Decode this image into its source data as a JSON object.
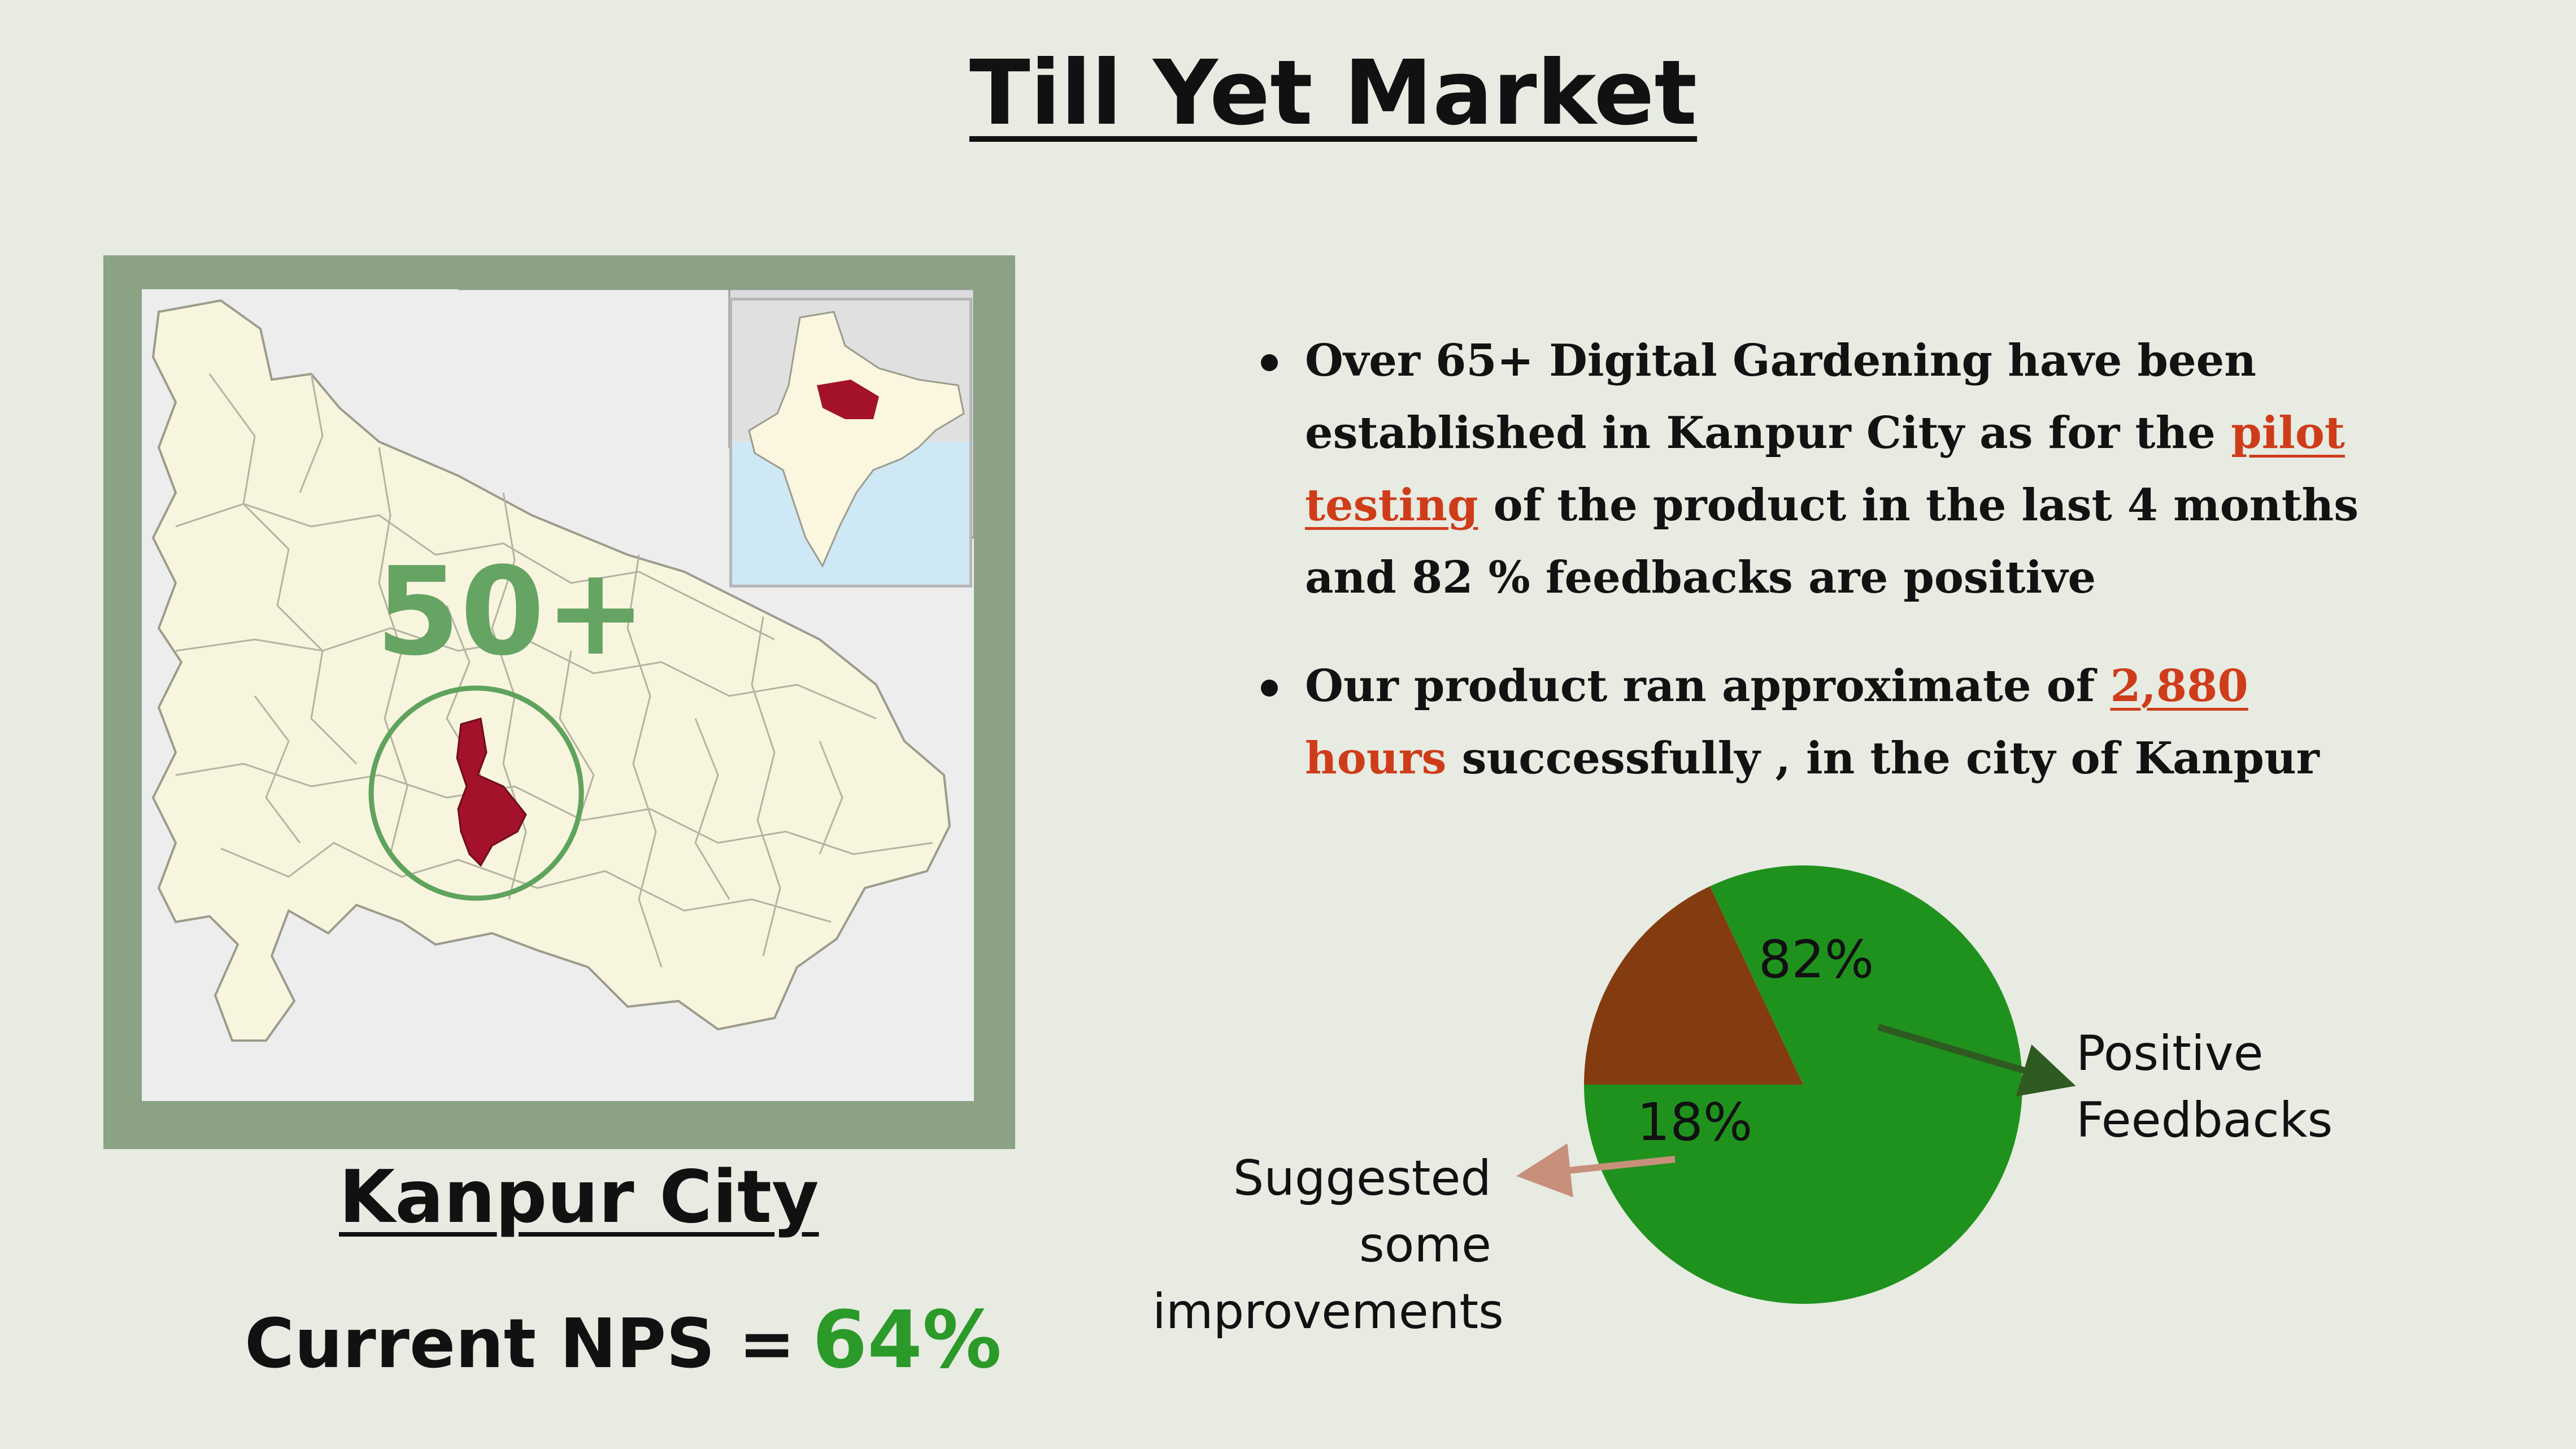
{
  "title": "Till Yet Market",
  "map": {
    "count_label": "50+",
    "city_label": "Kanpur City",
    "colors": {
      "frame": "#8ba285",
      "highlight": "#a3122a",
      "circle": "#5fa35d"
    }
  },
  "nps": {
    "label": "Current NPS =",
    "value": "64%"
  },
  "bullets": [
    {
      "before": "Over 65+ Digital Gardening have been established in Kanpur City as for the",
      "highlight": "pilot testing",
      "after": "of the product in the last 4 months and 82 %  feedbacks are positive"
    },
    {
      "before": "Our product ran approximate of",
      "highlight_underlined": "2,880",
      "highlight_plain": "hours",
      "after": "successfully , in the city of Kanpur"
    }
  ],
  "chart_data": {
    "type": "pie",
    "slices": [
      {
        "label": "Positive Feedbacks",
        "value": 82,
        "value_label": "82%",
        "color": "#1f921d"
      },
      {
        "label": "Suggested some improvements",
        "value": 18,
        "value_label": "18%",
        "color": "#843b10"
      }
    ],
    "annotations": [
      "Positive Feedbacks",
      "Suggested some improvements"
    ]
  }
}
